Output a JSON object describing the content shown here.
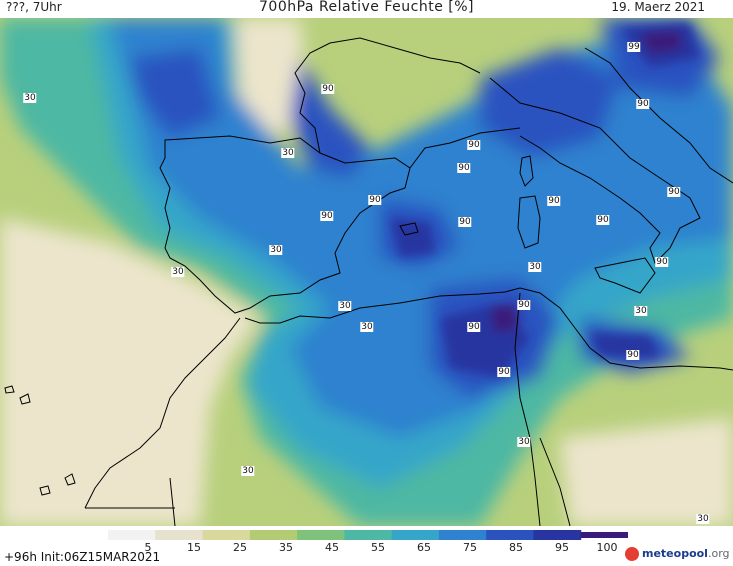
{
  "header": {
    "left_text": "???, 7Uhr",
    "title": "700hPa Relative Feuchte [%]",
    "date": "19. Maerz 2021"
  },
  "footer": {
    "run_info": "+96h Init:06Z15MAR2021",
    "logo_brand": "meteopool",
    "logo_domain": ".org",
    "colorbar_ticks": [
      "5",
      "15",
      "25",
      "35",
      "45",
      "55",
      "65",
      "75",
      "85",
      "95",
      "100"
    ],
    "colorbar_colors": [
      "#f2f2f2",
      "#e6e2cd",
      "#d9d99e",
      "#b3cc73",
      "#7fc27c",
      "#4db8a3",
      "#35a6c9",
      "#2f82cf",
      "#2a53c0",
      "#2834a0",
      "#3a1a7a"
    ]
  },
  "map": {
    "palette": {
      "dry_sand": "#ece5cc",
      "light_green": "#b8d07c",
      "mid_green": "#7fc27c",
      "teal": "#4db8a3",
      "cyan": "#35a6c9",
      "blue": "#2f82cf",
      "deep_blue": "#2a53c0",
      "navy": "#2834a0",
      "purple": "#3a1a7a"
    },
    "contour_labels": [
      "99",
      "90",
      "30",
      "90",
      "90",
      "90",
      "90",
      "90",
      "90",
      "90",
      "90",
      "30",
      "90",
      "30",
      "90",
      "90",
      "30",
      "90",
      "30",
      "90",
      "30",
      "30",
      "90",
      "30",
      "30",
      "30",
      "30"
    ]
  }
}
